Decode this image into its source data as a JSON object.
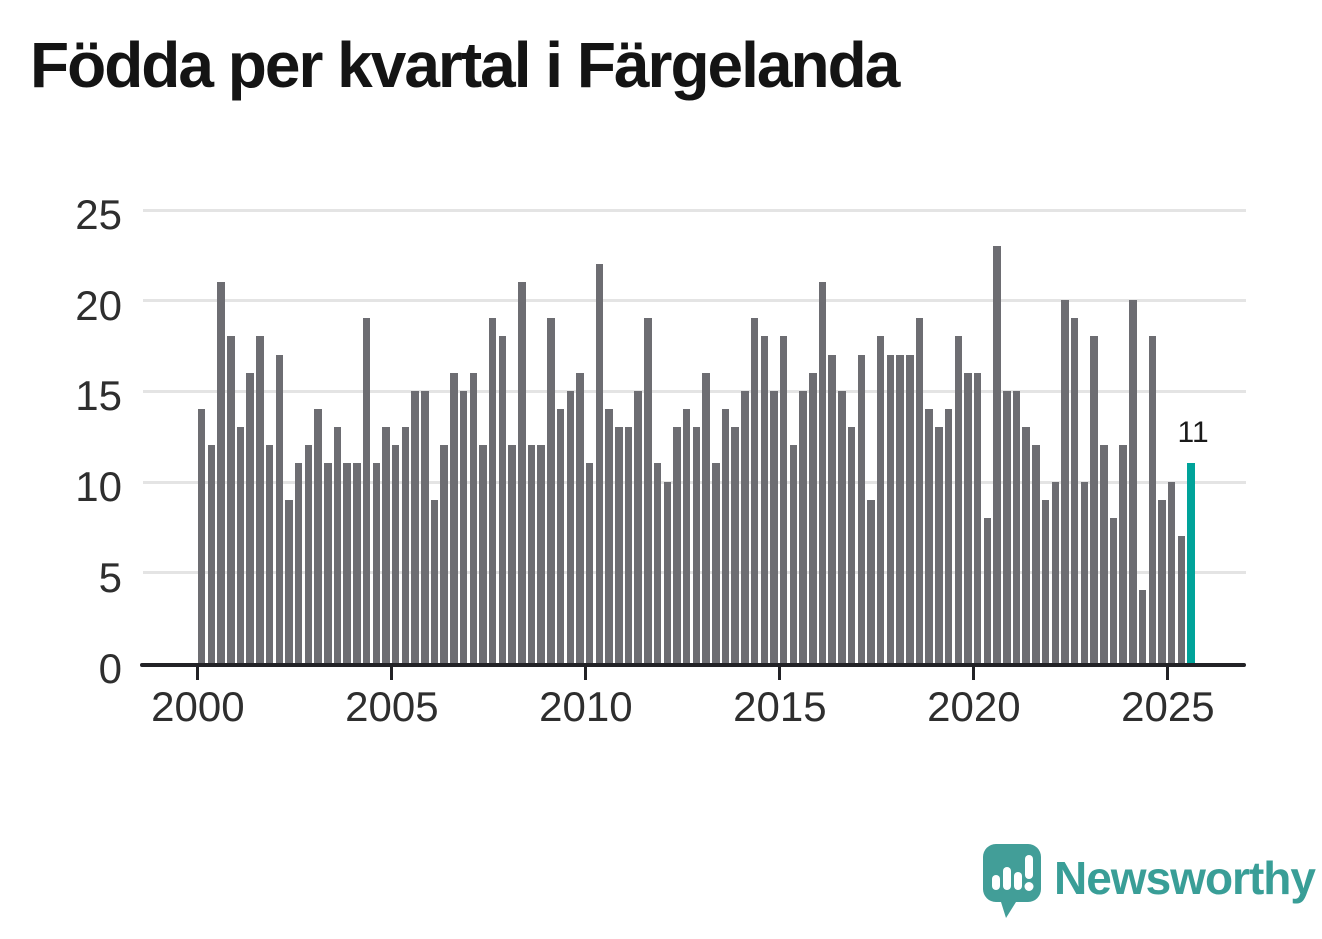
{
  "title": "Födda per kvartal i Färgelanda",
  "chart_data": {
    "type": "bar",
    "title": "Födda per kvartal i Färgelanda",
    "description": "Births per quarter, one bar per quarter",
    "start_quarter": "2000-Q1",
    "end_quarter": "2025-Q3",
    "values_by_year": {
      "2000": [
        14,
        12,
        21,
        18
      ],
      "2001": [
        13,
        16,
        18,
        12
      ],
      "2002": [
        17,
        9,
        11,
        12
      ],
      "2003": [
        14,
        11,
        13,
        11
      ],
      "2004": [
        11,
        19,
        11,
        13
      ],
      "2005": [
        12,
        13,
        15,
        15
      ],
      "2006": [
        9,
        12,
        16,
        15
      ],
      "2007": [
        16,
        12,
        19,
        18
      ],
      "2008": [
        12,
        21,
        12,
        12
      ],
      "2009": [
        19,
        14,
        15,
        16
      ],
      "2010": [
        11,
        22,
        14,
        13
      ],
      "2011": [
        13,
        15,
        19,
        11
      ],
      "2012": [
        10,
        13,
        14,
        13
      ],
      "2013": [
        16,
        11,
        14,
        13
      ],
      "2014": [
        15,
        19,
        18,
        15
      ],
      "2015": [
        18,
        12,
        15,
        16
      ],
      "2016": [
        21,
        17,
        15,
        13
      ],
      "2017": [
        17,
        9,
        18,
        17
      ],
      "2018": [
        17,
        17,
        19,
        14
      ],
      "2019": [
        13,
        14,
        18,
        16
      ],
      "2020": [
        16,
        8,
        23,
        15
      ],
      "2021": [
        15,
        13,
        12,
        9
      ],
      "2022": [
        10,
        20,
        19,
        10
      ],
      "2023": [
        18,
        12,
        8,
        12
      ],
      "2024": [
        20,
        4,
        18,
        9
      ],
      "2025": [
        10,
        7,
        11
      ]
    },
    "highlight_last": {
      "quarter": "2025-Q3",
      "value": 11,
      "label": "11"
    },
    "bar_color": "#6d6d72",
    "highlight_color": "#00a39a",
    "ylim": [
      0,
      25
    ],
    "yticks": [
      "0",
      "5",
      "10",
      "15",
      "20",
      "25"
    ],
    "xticks": [
      "2000",
      "2005",
      "2010",
      "2015",
      "2020",
      "2025"
    ],
    "grid": true,
    "legend_position": "none"
  },
  "annotation": {
    "last_value_label": "11"
  },
  "branding": {
    "text": "Newsworthy",
    "color": "#399e97",
    "icon": "newsworthy-speech-bubble-bar-chart-icon"
  }
}
